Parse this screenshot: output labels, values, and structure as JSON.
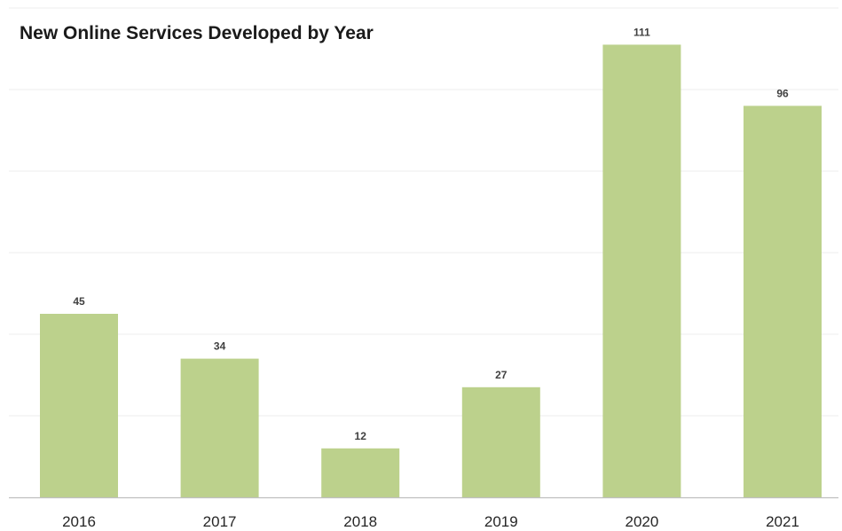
{
  "chart_data": {
    "type": "bar",
    "title": "New Online Services Developed by Year",
    "xlabel": "",
    "ylabel": "",
    "categories": [
      "2016",
      "2017",
      "2018",
      "2019",
      "2020",
      "2021"
    ],
    "values": [
      45,
      34,
      12,
      27,
      111,
      96
    ],
    "ylim": [
      0,
      120
    ],
    "grid": true,
    "bar_color": "#bcd18c",
    "grid_color": "#ececec",
    "axis_color": "#bfbfbf"
  }
}
